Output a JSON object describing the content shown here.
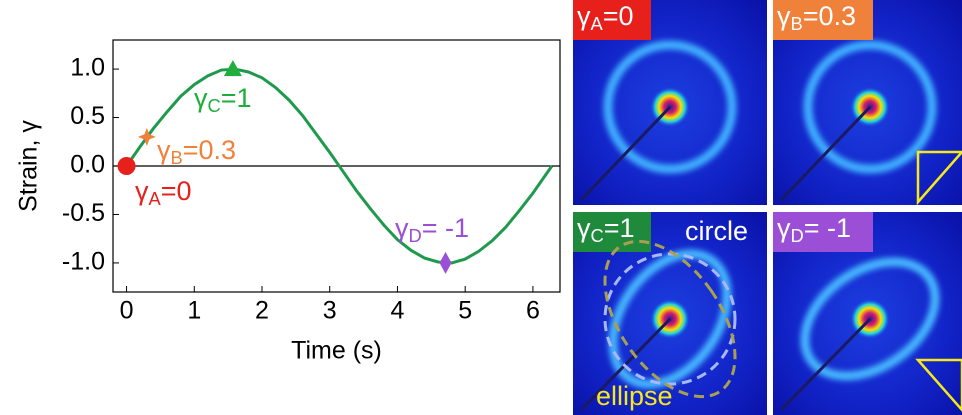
{
  "chart_data": {
    "type": "line",
    "xlabel": "Time (s)",
    "ylabel": "Strain, γ",
    "x": [
      0,
      0.2,
      0.4,
      0.6,
      0.8,
      1.0,
      1.2,
      1.4,
      1.6,
      1.8,
      2.0,
      2.2,
      2.4,
      2.6,
      2.8,
      3.0,
      3.2,
      3.4,
      3.6,
      3.8,
      4.0,
      4.2,
      4.4,
      4.6,
      4.8,
      5.0,
      5.2,
      5.4,
      5.6,
      5.8,
      6.0,
      6.2,
      6.28
    ],
    "series": [
      {
        "color": "#1f9a4d",
        "values": [
          0,
          0.2,
          0.39,
          0.56,
          0.72,
          0.84,
          0.93,
          0.99,
          1.0,
          0.97,
          0.91,
          0.81,
          0.68,
          0.52,
          0.33,
          0.14,
          -0.06,
          -0.26,
          -0.44,
          -0.61,
          -0.76,
          -0.87,
          -0.95,
          -0.99,
          -1.0,
          -0.96,
          -0.88,
          -0.77,
          -0.63,
          -0.46,
          -0.28,
          -0.08,
          0
        ]
      }
    ],
    "points": [
      {
        "x": 0,
        "y": 0,
        "marker": "circle",
        "color": "#e8201c",
        "greek": "γ",
        "sub": "A",
        "rest": "=0"
      },
      {
        "x": 0.3,
        "y": 0.3,
        "marker": "star",
        "color": "#f0813a",
        "greek": "γ",
        "sub": "B",
        "rest": "=0.3"
      },
      {
        "x": 1.57,
        "y": 1,
        "marker": "triangle",
        "color": "#1fae3c",
        "greek": "γ",
        "sub": "C",
        "rest": "=1"
      },
      {
        "x": 4.71,
        "y": -1,
        "marker": "diamond",
        "color": "#9b4fd6",
        "greek": "γ",
        "sub": "D",
        "rest": "= -1"
      }
    ],
    "xlim": [
      -0.2,
      6.4
    ],
    "ylim": [
      -1.3,
      1.3
    ],
    "xticks": [
      0,
      1,
      2,
      3,
      4,
      5,
      6
    ],
    "yticks": [
      {
        "value": 1,
        "label": "1.0"
      },
      {
        "value": 0.5,
        "label": "0.5"
      },
      {
        "value": 0,
        "label": "0.0"
      },
      {
        "value": -0.5,
        "label": "-0.5"
      },
      {
        "value": -1,
        "label": "-1.0"
      }
    ]
  },
  "panels": [
    {
      "greek": "γ",
      "sub": "A",
      "rest": "=0",
      "color": "#e8201c"
    },
    {
      "greek": "γ",
      "sub": "B",
      "rest": "=0.3",
      "color": "#f0813a"
    },
    {
      "greek": "γ",
      "sub": "C",
      "rest": "=1",
      "color": "#1f8a3c"
    },
    {
      "greek": "γ",
      "sub": "D",
      "rest": "= -1",
      "color": "#9b4fd6"
    }
  ],
  "panel_notes": [
    "circle",
    "ellipse"
  ]
}
